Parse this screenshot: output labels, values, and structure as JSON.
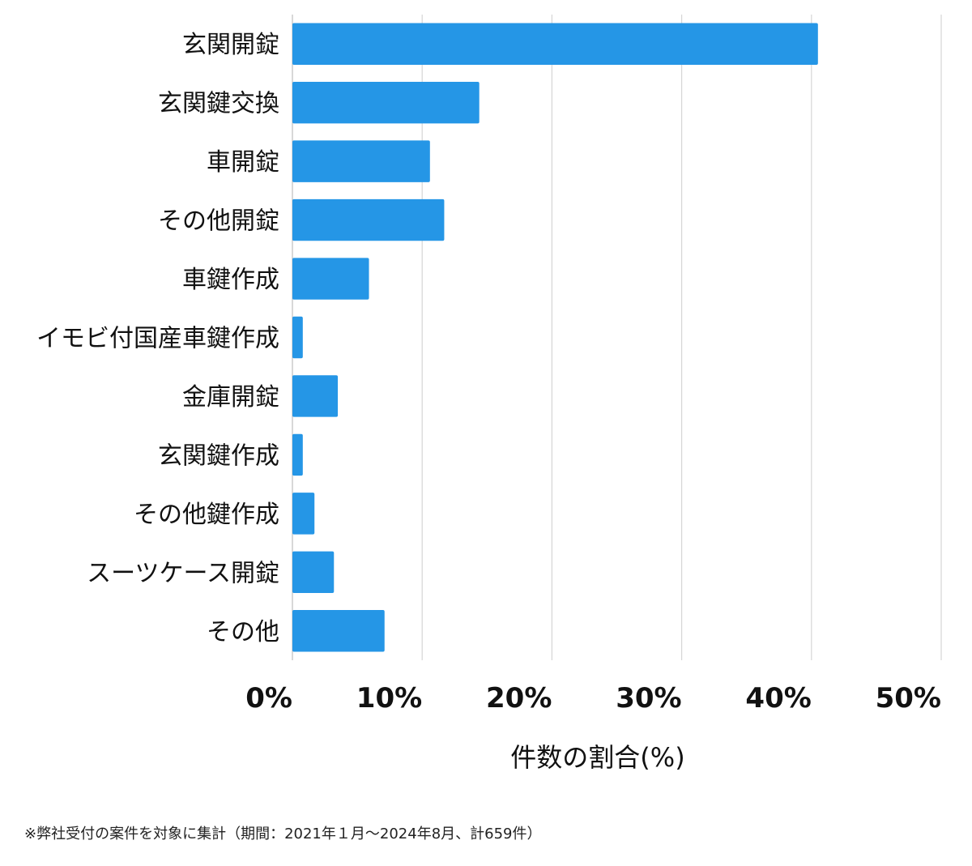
{
  "chart_data": {
    "type": "bar",
    "orientation": "horizontal",
    "categories": [
      "玄関開錠",
      "玄関鍵交換",
      "車開錠",
      "その他開錠",
      "車鍵作成",
      "イモビ付国産車鍵作成",
      "金庫開錠",
      "玄関鍵作成",
      "その他鍵作成",
      "スーツケース開錠",
      "その他"
    ],
    "values": [
      40.5,
      14.4,
      10.6,
      11.7,
      5.9,
      0.8,
      3.5,
      0.8,
      1.7,
      3.2,
      7.1
    ],
    "xlim": [
      0,
      50
    ],
    "xticks": [
      0,
      10,
      20,
      30,
      40,
      50
    ],
    "xtick_labels": [
      "0%",
      "10%",
      "20%",
      "30%",
      "40%",
      "50%"
    ],
    "xlabel": "件数の割合(%)",
    "ylabel": "",
    "title": "",
    "grid": "vertical",
    "bar_color": "#2596e6"
  },
  "footnote": "※弊社受付の案件を対象に集計（期間：2021年１月〜2024年8月、計659件）"
}
